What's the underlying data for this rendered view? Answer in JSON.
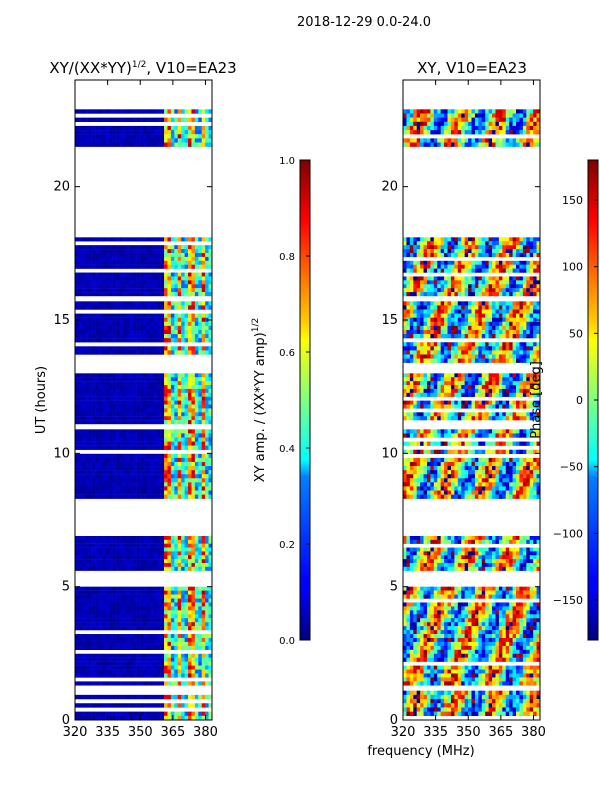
{
  "suptitle": "2018-12-29 0.0-24.0",
  "chart_data": [
    {
      "type": "heatmap",
      "title_main": "XY/(XX*YY)",
      "title_sup": "1/2",
      "title_rest": ", V10=EA23",
      "xlabel": "",
      "ylabel": "UT (hours)",
      "xlim": [
        320,
        383
      ],
      "ylim": [
        0,
        24
      ],
      "xticks": [
        "320",
        "335",
        "350",
        "365",
        "380"
      ],
      "xtick_values": [
        320,
        335,
        350,
        365,
        380
      ],
      "yticks": [
        "0",
        "5",
        "10",
        "15",
        "20"
      ],
      "ytick_values": [
        0,
        5,
        10,
        15,
        20
      ],
      "colorbar": {
        "label_main": "XY amp. / (XX*YY amp)",
        "label_sup": "1/2",
        "range": [
          0,
          1
        ],
        "ticks": [
          "0.0",
          "0.2",
          "0.4",
          "0.6",
          "0.8",
          "1.0"
        ],
        "tick_values": [
          0.0,
          0.2,
          0.4,
          0.6,
          0.8,
          1.0
        ]
      },
      "data_blocks_ut": [
        [
          0.0,
          1.1
        ],
        [
          1.3,
          5.0
        ],
        [
          5.6,
          6.9
        ],
        [
          8.3,
          10.9
        ],
        [
          11.1,
          13.0
        ],
        [
          13.4,
          15.7
        ],
        [
          15.9,
          18.1
        ],
        [
          21.5,
          22.9
        ]
      ],
      "bright_channels_mhz": [
        363,
        368,
        373,
        379
      ]
    },
    {
      "type": "heatmap",
      "title": "XY, V10=EA23",
      "xlabel": "frequency (MHz)",
      "ylabel": "",
      "xlim": [
        320,
        383
      ],
      "ylim": [
        0,
        24
      ],
      "xticks": [
        "320",
        "335",
        "350",
        "365",
        "380"
      ],
      "xtick_values": [
        320,
        335,
        350,
        365,
        380
      ],
      "yticks": [
        "0",
        "5",
        "10",
        "15",
        "20"
      ],
      "ytick_values": [
        0,
        5,
        10,
        15,
        20
      ],
      "colorbar": {
        "label": "Phase [deg]",
        "range": [
          -180,
          180
        ],
        "ticks": [
          "−150",
          "−100",
          "−50",
          "0",
          "50",
          "100",
          "150"
        ],
        "tick_values": [
          -150,
          -100,
          -50,
          0,
          50,
          100,
          150
        ]
      },
      "data_blocks_ut": [
        [
          0.0,
          1.1
        ],
        [
          1.3,
          5.0
        ],
        [
          5.6,
          6.9
        ],
        [
          8.3,
          10.9
        ],
        [
          11.1,
          13.0
        ],
        [
          13.4,
          15.7
        ],
        [
          15.9,
          18.1
        ],
        [
          21.5,
          22.9
        ]
      ]
    }
  ]
}
